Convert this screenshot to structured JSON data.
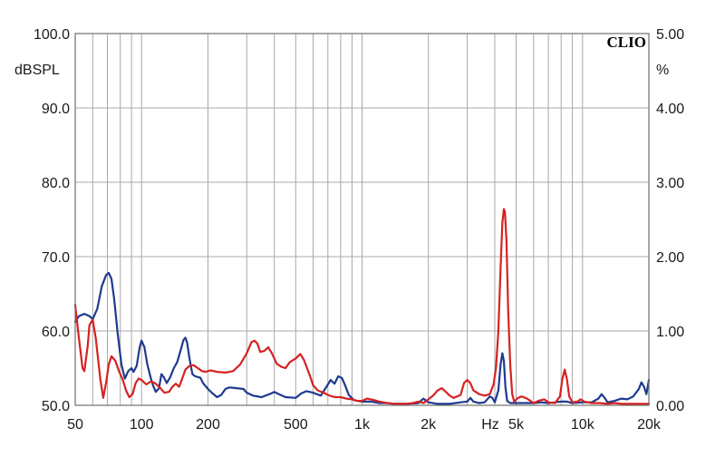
{
  "brand": "CLIO",
  "chart_data": {
    "type": "line",
    "title": "",
    "left_unit": "dBSPL",
    "right_unit": "%",
    "x_unit": "Hz",
    "xscale": "log",
    "xlim": [
      50,
      20000
    ],
    "ylim": [
      50,
      100
    ],
    "y2lim": [
      0,
      5
    ],
    "grid": true,
    "x_ticks": [
      {
        "value": 50,
        "label": "50"
      },
      {
        "value": 100,
        "label": "100"
      },
      {
        "value": 200,
        "label": "200"
      },
      {
        "value": 500,
        "label": "500"
      },
      {
        "value": 1000,
        "label": "1k"
      },
      {
        "value": 2000,
        "label": "2k"
      },
      {
        "value": 5000,
        "label": "5k"
      },
      {
        "value": 10000,
        "label": "10k"
      },
      {
        "value": 20000,
        "label": "20k"
      }
    ],
    "y_ticks": [
      {
        "value": 50,
        "label": "50.0"
      },
      {
        "value": 60,
        "label": "60.0"
      },
      {
        "value": 70,
        "label": "70.0"
      },
      {
        "value": 80,
        "label": "80.0"
      },
      {
        "value": 90,
        "label": "90.0"
      },
      {
        "value": 100,
        "label": "100.0"
      }
    ],
    "y2_ticks": [
      {
        "value": 0,
        "label": "0.00"
      },
      {
        "value": 1,
        "label": "1.00"
      },
      {
        "value": 2,
        "label": "2.00"
      },
      {
        "value": 3,
        "label": "3.00"
      },
      {
        "value": 4,
        "label": "4.00"
      },
      {
        "value": 5,
        "label": "5.00"
      }
    ],
    "series": [
      {
        "color": "#1f3a8f",
        "points": [
          [
            50,
            61.2
          ],
          [
            52,
            62.0
          ],
          [
            55,
            62.3
          ],
          [
            58,
            62.0
          ],
          [
            60,
            61.6
          ],
          [
            63,
            63.0
          ],
          [
            66,
            66.0
          ],
          [
            69,
            67.5
          ],
          [
            71,
            67.8
          ],
          [
            73,
            67.0
          ],
          [
            75,
            64.5
          ],
          [
            78,
            59.5
          ],
          [
            81,
            55.5
          ],
          [
            84,
            53.6
          ],
          [
            87,
            54.6
          ],
          [
            90,
            55.0
          ],
          [
            92,
            54.5
          ],
          [
            95,
            55.3
          ],
          [
            98,
            57.8
          ],
          [
            100,
            58.7
          ],
          [
            103,
            57.8
          ],
          [
            106,
            55.6
          ],
          [
            110,
            53.7
          ],
          [
            113,
            52.6
          ],
          [
            116,
            51.8
          ],
          [
            120,
            52.3
          ],
          [
            123,
            54.2
          ],
          [
            126,
            53.8
          ],
          [
            130,
            53.0
          ],
          [
            135,
            53.8
          ],
          [
            140,
            55.0
          ],
          [
            145,
            55.8
          ],
          [
            150,
            57.3
          ],
          [
            155,
            58.8
          ],
          [
            158,
            59.1
          ],
          [
            161,
            58.4
          ],
          [
            165,
            56.3
          ],
          [
            170,
            54.2
          ],
          [
            175,
            53.9
          ],
          [
            180,
            53.8
          ],
          [
            185,
            53.7
          ],
          [
            190,
            53.0
          ],
          [
            200,
            52.2
          ],
          [
            210,
            51.6
          ],
          [
            220,
            51.1
          ],
          [
            230,
            51.4
          ],
          [
            240,
            52.2
          ],
          [
            250,
            52.4
          ],
          [
            270,
            52.3
          ],
          [
            290,
            52.2
          ],
          [
            300,
            51.7
          ],
          [
            320,
            51.3
          ],
          [
            350,
            51.1
          ],
          [
            380,
            51.5
          ],
          [
            400,
            51.8
          ],
          [
            420,
            51.5
          ],
          [
            450,
            51.1
          ],
          [
            500,
            51.0
          ],
          [
            530,
            51.6
          ],
          [
            560,
            51.9
          ],
          [
            600,
            51.7
          ],
          [
            650,
            51.3
          ],
          [
            690,
            52.5
          ],
          [
            720,
            53.4
          ],
          [
            750,
            52.9
          ],
          [
            780,
            53.9
          ],
          [
            810,
            53.7
          ],
          [
            840,
            52.6
          ],
          [
            870,
            51.4
          ],
          [
            920,
            50.7
          ],
          [
            1000,
            50.5
          ],
          [
            1100,
            50.5
          ],
          [
            1200,
            50.3
          ],
          [
            1300,
            50.3
          ],
          [
            1400,
            50.2
          ],
          [
            1600,
            50.2
          ],
          [
            1800,
            50.3
          ],
          [
            1900,
            50.9
          ],
          [
            2000,
            50.4
          ],
          [
            2200,
            50.2
          ],
          [
            2500,
            50.2
          ],
          [
            2800,
            50.4
          ],
          [
            3000,
            50.5
          ],
          [
            3100,
            51.0
          ],
          [
            3200,
            50.5
          ],
          [
            3400,
            50.3
          ],
          [
            3600,
            50.4
          ],
          [
            3800,
            51.2
          ],
          [
            3900,
            51.0
          ],
          [
            4000,
            50.4
          ],
          [
            4150,
            52.0
          ],
          [
            4250,
            55.5
          ],
          [
            4330,
            57.0
          ],
          [
            4400,
            56.0
          ],
          [
            4470,
            52.5
          ],
          [
            4550,
            50.6
          ],
          [
            4700,
            50.3
          ],
          [
            5000,
            50.3
          ],
          [
            5500,
            50.3
          ],
          [
            6000,
            50.3
          ],
          [
            6500,
            50.4
          ],
          [
            7000,
            50.3
          ],
          [
            7500,
            50.4
          ],
          [
            8000,
            50.5
          ],
          [
            8500,
            50.5
          ],
          [
            9000,
            50.3
          ],
          [
            10000,
            50.4
          ],
          [
            11000,
            50.4
          ],
          [
            11800,
            50.9
          ],
          [
            12200,
            51.5
          ],
          [
            12600,
            51.0
          ],
          [
            13000,
            50.4
          ],
          [
            14000,
            50.6
          ],
          [
            15000,
            50.9
          ],
          [
            16000,
            50.8
          ],
          [
            17000,
            51.2
          ],
          [
            18000,
            52.2
          ],
          [
            18500,
            53.1
          ],
          [
            19000,
            52.5
          ],
          [
            19500,
            51.5
          ],
          [
            20000,
            53.4
          ]
        ]
      },
      {
        "color": "#d62222",
        "points": [
          [
            50,
            63.5
          ],
          [
            52,
            59.0
          ],
          [
            54,
            55.0
          ],
          [
            55,
            54.6
          ],
          [
            57,
            58.0
          ],
          [
            58,
            60.8
          ],
          [
            60,
            61.5
          ],
          [
            62,
            59.0
          ],
          [
            65,
            53.5
          ],
          [
            67,
            51.0
          ],
          [
            69,
            53.0
          ],
          [
            71,
            55.5
          ],
          [
            73,
            56.6
          ],
          [
            76,
            56.0
          ],
          [
            79,
            54.6
          ],
          [
            82,
            53.5
          ],
          [
            85,
            52.0
          ],
          [
            88,
            51.1
          ],
          [
            91,
            51.5
          ],
          [
            94,
            53.0
          ],
          [
            97,
            53.6
          ],
          [
            100,
            53.4
          ],
          [
            105,
            52.8
          ],
          [
            110,
            53.2
          ],
          [
            115,
            53.0
          ],
          [
            120,
            52.5
          ],
          [
            127,
            51.7
          ],
          [
            133,
            51.8
          ],
          [
            138,
            52.5
          ],
          [
            143,
            52.9
          ],
          [
            148,
            52.5
          ],
          [
            152,
            53.4
          ],
          [
            158,
            54.8
          ],
          [
            165,
            55.3
          ],
          [
            172,
            55.4
          ],
          [
            180,
            55.0
          ],
          [
            188,
            54.6
          ],
          [
            195,
            54.5
          ],
          [
            205,
            54.7
          ],
          [
            220,
            54.5
          ],
          [
            240,
            54.4
          ],
          [
            260,
            54.6
          ],
          [
            280,
            55.5
          ],
          [
            300,
            57.0
          ],
          [
            315,
            58.5
          ],
          [
            325,
            58.7
          ],
          [
            335,
            58.3
          ],
          [
            345,
            57.2
          ],
          [
            360,
            57.3
          ],
          [
            375,
            57.8
          ],
          [
            390,
            57.0
          ],
          [
            410,
            55.6
          ],
          [
            430,
            55.2
          ],
          [
            450,
            55.0
          ],
          [
            470,
            55.8
          ],
          [
            500,
            56.3
          ],
          [
            525,
            56.9
          ],
          [
            545,
            56.1
          ],
          [
            560,
            55.2
          ],
          [
            580,
            54.0
          ],
          [
            600,
            52.7
          ],
          [
            630,
            52.0
          ],
          [
            670,
            51.7
          ],
          [
            700,
            51.4
          ],
          [
            730,
            51.2
          ],
          [
            760,
            51.1
          ],
          [
            800,
            51.1
          ],
          [
            850,
            50.9
          ],
          [
            900,
            50.8
          ],
          [
            950,
            50.6
          ],
          [
            1000,
            50.6
          ],
          [
            1050,
            50.9
          ],
          [
            1100,
            50.8
          ],
          [
            1200,
            50.5
          ],
          [
            1300,
            50.3
          ],
          [
            1400,
            50.2
          ],
          [
            1500,
            50.2
          ],
          [
            1600,
            50.2
          ],
          [
            1700,
            50.3
          ],
          [
            1800,
            50.5
          ],
          [
            1900,
            50.3
          ],
          [
            2000,
            50.8
          ],
          [
            2100,
            51.3
          ],
          [
            2200,
            52.0
          ],
          [
            2300,
            52.3
          ],
          [
            2400,
            51.8
          ],
          [
            2500,
            51.3
          ],
          [
            2600,
            51.0
          ],
          [
            2800,
            51.4
          ],
          [
            2900,
            53.0
          ],
          [
            3000,
            53.4
          ],
          [
            3100,
            53.0
          ],
          [
            3200,
            52.0
          ],
          [
            3400,
            51.5
          ],
          [
            3600,
            51.3
          ],
          [
            3800,
            51.5
          ],
          [
            3950,
            52.8
          ],
          [
            4050,
            55.0
          ],
          [
            4150,
            60.0
          ],
          [
            4250,
            68.5
          ],
          [
            4330,
            74.5
          ],
          [
            4400,
            76.4
          ],
          [
            4450,
            76.0
          ],
          [
            4520,
            72.0
          ],
          [
            4600,
            63.0
          ],
          [
            4700,
            55.5
          ],
          [
            4800,
            51.5
          ],
          [
            4900,
            50.5
          ],
          [
            5100,
            51.0
          ],
          [
            5300,
            51.2
          ],
          [
            5600,
            50.9
          ],
          [
            6000,
            50.3
          ],
          [
            6300,
            50.6
          ],
          [
            6700,
            50.8
          ],
          [
            7000,
            50.4
          ],
          [
            7500,
            50.3
          ],
          [
            7900,
            51.2
          ],
          [
            8100,
            53.5
          ],
          [
            8300,
            54.8
          ],
          [
            8500,
            53.5
          ],
          [
            8700,
            51.2
          ],
          [
            9000,
            50.4
          ],
          [
            9500,
            50.5
          ],
          [
            9800,
            50.8
          ],
          [
            10200,
            50.5
          ],
          [
            11000,
            50.3
          ],
          [
            12000,
            50.3
          ],
          [
            13000,
            50.2
          ],
          [
            14000,
            50.3
          ],
          [
            15000,
            50.2
          ],
          [
            17000,
            50.2
          ],
          [
            20000,
            50.2
          ]
        ]
      }
    ]
  }
}
